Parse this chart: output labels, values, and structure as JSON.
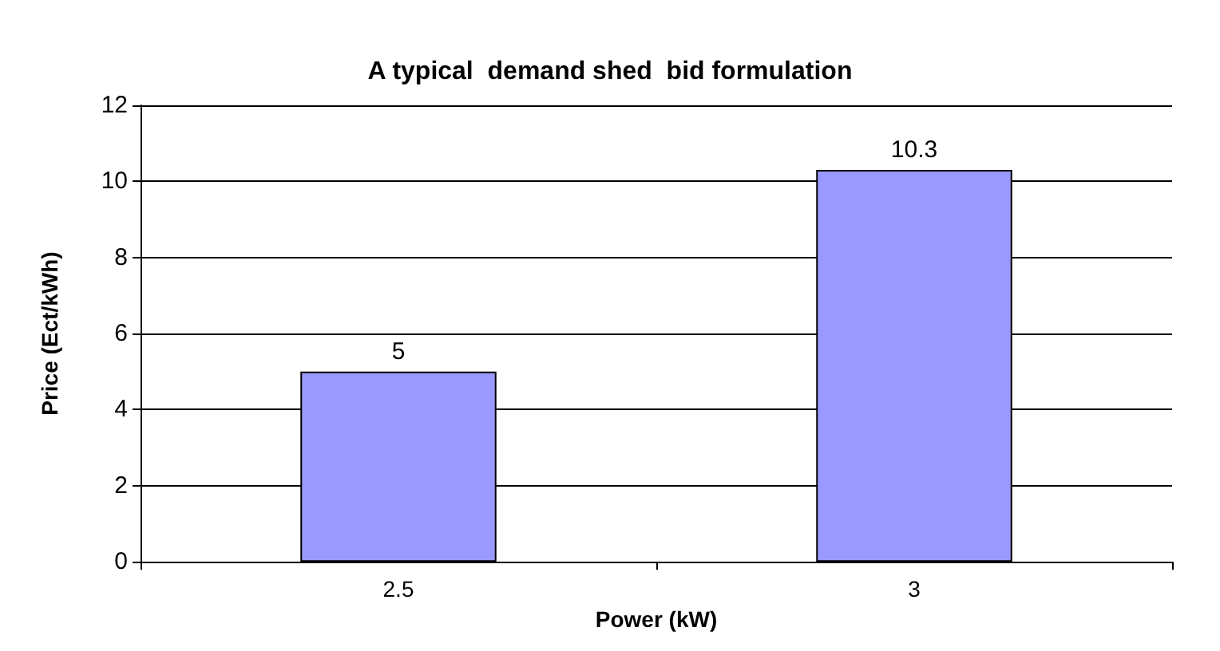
{
  "chart_data": {
    "type": "bar",
    "title": "A typical  demand shed  bid formulation",
    "xlabel": "Power (kW)",
    "ylabel": "Price (Ect/kWh)",
    "categories": [
      "2.5",
      "3"
    ],
    "values": [
      5,
      10.3
    ],
    "color": "#9999ff",
    "ylim": [
      0,
      12
    ],
    "yticks": [
      0,
      2,
      4,
      6,
      8,
      10,
      12
    ],
    "grid": "y",
    "data_labels": true
  }
}
